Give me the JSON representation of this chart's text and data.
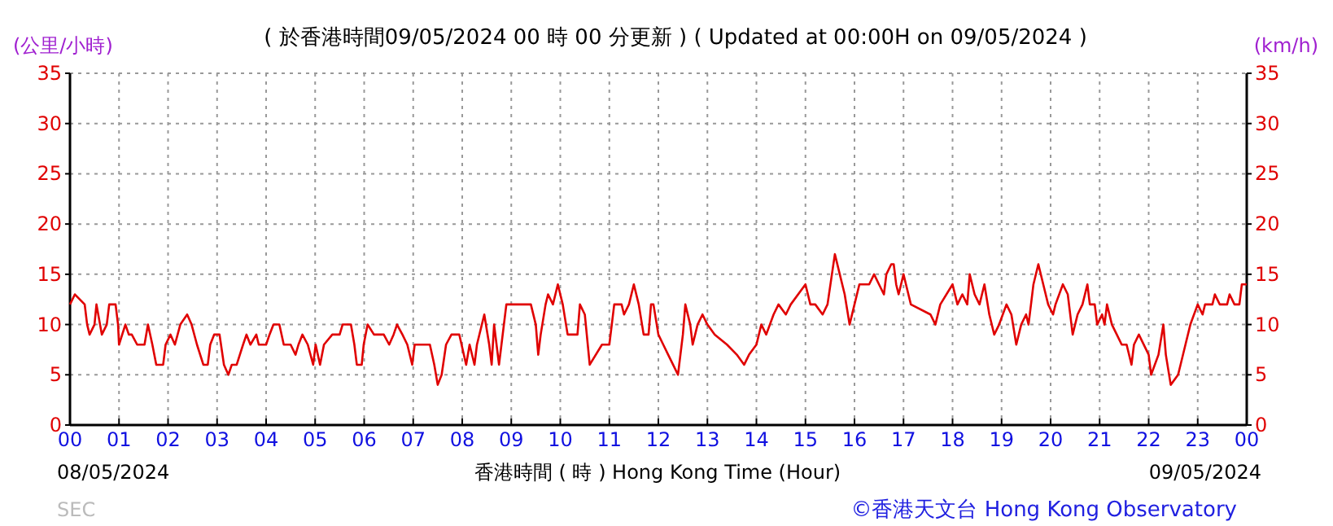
{
  "chart_data": {
    "type": "line",
    "title": "( 於香港時間09/05/2024 00 時 00 分更新 ) ( Updated at 00:00H on 09/05/2024 )",
    "ylabel": "(公里/小時)",
    "y2label": "(km/h)",
    "xlabel": "香港時間 ( 時 ) Hong Kong Time (Hour)",
    "annotations": [
      "08/05/2024",
      "09/05/2024",
      "SEC",
      "©香港天文台 Hong Kong Observatory"
    ],
    "xlim": [
      0,
      24
    ],
    "xticks": [
      {
        "value": 0,
        "label": "00"
      },
      {
        "value": 1,
        "label": "01"
      },
      {
        "value": 2,
        "label": "02"
      },
      {
        "value": 3,
        "label": "03"
      },
      {
        "value": 4,
        "label": "04"
      },
      {
        "value": 5,
        "label": "05"
      },
      {
        "value": 6,
        "label": "06"
      },
      {
        "value": 7,
        "label": "07"
      },
      {
        "value": 8,
        "label": "08"
      },
      {
        "value": 9,
        "label": "09"
      },
      {
        "value": 10,
        "label": "10"
      },
      {
        "value": 11,
        "label": "11"
      },
      {
        "value": 12,
        "label": "12"
      },
      {
        "value": 13,
        "label": "13"
      },
      {
        "value": 14,
        "label": "14"
      },
      {
        "value": 15,
        "label": "15"
      },
      {
        "value": 16,
        "label": "16"
      },
      {
        "value": 17,
        "label": "17"
      },
      {
        "value": 18,
        "label": "18"
      },
      {
        "value": 19,
        "label": "19"
      },
      {
        "value": 20,
        "label": "20"
      },
      {
        "value": 21,
        "label": "21"
      },
      {
        "value": 22,
        "label": "22"
      },
      {
        "value": 23,
        "label": "23"
      },
      {
        "value": 24,
        "label": "00"
      }
    ],
    "ylim": [
      0,
      35
    ],
    "yticks": [
      0,
      5,
      10,
      15,
      20,
      25,
      30,
      35
    ],
    "y2lim": [
      0,
      35
    ],
    "y2ticks": [
      0,
      5,
      10,
      15,
      20,
      25,
      30,
      35
    ],
    "grid": true,
    "marker": "none",
    "series": [
      {
        "color": "#e00000",
        "x": [
          0,
          0.1,
          0.3,
          0.35,
          0.4,
          0.5,
          0.54,
          0.65,
          0.75,
          0.8,
          0.93,
          0.98,
          1.0,
          1.13,
          1.2,
          1.26,
          1.37,
          1.52,
          1.59,
          1.68,
          1.76,
          1.9,
          1.95,
          2.05,
          2.14,
          2.25,
          2.39,
          2.48,
          2.59,
          2.72,
          2.81,
          2.86,
          2.94,
          3.05,
          3.14,
          3.23,
          3.3,
          3.4,
          3.53,
          3.6,
          3.68,
          3.8,
          3.85,
          4.0,
          4.07,
          4.15,
          4.27,
          4.36,
          4.5,
          4.6,
          4.66,
          4.74,
          4.85,
          4.96,
          5.01,
          5.1,
          5.18,
          5.35,
          5.5,
          5.56,
          5.73,
          5.8,
          5.85,
          5.95,
          5.99,
          6.07,
          6.2,
          6.4,
          6.51,
          6.6,
          6.67,
          6.78,
          6.88,
          6.98,
          7.03,
          7.34,
          7.43,
          7.5,
          7.58,
          7.67,
          7.78,
          7.94,
          8.08,
          8.15,
          8.25,
          8.3,
          8.4,
          8.45,
          8.55,
          8.6,
          8.65,
          8.75,
          8.8,
          8.9,
          9.4,
          9.5,
          9.55,
          9.6,
          9.7,
          9.75,
          9.85,
          9.95,
          10.05,
          10.15,
          10.35,
          10.4,
          10.5,
          10.6,
          10.85,
          11.0,
          11.05,
          11.1,
          11.25,
          11.3,
          11.4,
          11.5,
          11.6,
          11.7,
          11.8,
          11.85,
          11.9,
          12.0,
          12.1,
          12.2,
          12.3,
          12.4,
          12.5,
          12.55,
          12.65,
          12.7,
          12.8,
          12.9,
          13.0,
          13.15,
          13.4,
          13.6,
          13.75,
          13.85,
          14.0,
          14.1,
          14.2,
          14.35,
          14.45,
          14.6,
          14.7,
          15.0,
          15.1,
          15.2,
          15.35,
          15.45,
          15.6,
          15.7,
          15.8,
          15.9,
          16.0,
          16.1,
          16.3,
          16.4,
          16.5,
          16.6,
          16.65,
          16.75,
          16.8,
          16.85,
          16.9,
          16.95,
          17.0,
          17.05,
          17.15,
          17.55,
          17.65,
          17.75,
          18.0,
          18.1,
          18.2,
          18.3,
          18.35,
          18.45,
          18.55,
          18.65,
          18.75,
          18.85,
          18.95,
          19.1,
          19.2,
          19.3,
          19.4,
          19.5,
          19.55,
          19.65,
          19.75,
          19.85,
          19.95,
          20.05,
          20.1,
          20.25,
          20.35,
          20.45,
          20.55,
          20.65,
          20.75,
          20.8,
          20.9,
          20.95,
          21.05,
          21.1,
          21.15,
          21.25,
          21.35,
          21.45,
          21.55,
          21.65,
          21.7,
          21.8,
          22.0,
          22.05,
          22.2,
          22.3,
          22.35,
          22.45,
          22.6,
          22.65,
          22.75,
          22.85,
          23.0,
          23.1,
          23.15,
          23.3,
          23.35,
          23.45,
          23.6,
          23.65,
          23.75,
          23.85,
          23.9,
          24.0
        ],
        "values": [
          12,
          13,
          12,
          10,
          9,
          10,
          12,
          9,
          10,
          12,
          12,
          10,
          8,
          10,
          9,
          9,
          8,
          8,
          10,
          8,
          6,
          6,
          8,
          9,
          8,
          10,
          11,
          10,
          8,
          6,
          6,
          8,
          9,
          9,
          6,
          5,
          6,
          6,
          8,
          9,
          8,
          9,
          8,
          8,
          9,
          10,
          10,
          8,
          8,
          7,
          8,
          9,
          8,
          6,
          8,
          6,
          8,
          9,
          9,
          10,
          10,
          8,
          6,
          6,
          8,
          10,
          9,
          9,
          8,
          9,
          10,
          9,
          8,
          6,
          8,
          8,
          6,
          4,
          5,
          8,
          9,
          9,
          6,
          8,
          6,
          8,
          10,
          11,
          8,
          6,
          10,
          6,
          8,
          12,
          12,
          10,
          7,
          9,
          12,
          13,
          12,
          14,
          12,
          9,
          9,
          12,
          11,
          6,
          8,
          8,
          10,
          12,
          12,
          11,
          12,
          14,
          12,
          9,
          9,
          12,
          12,
          9,
          8,
          7,
          6,
          5,
          9,
          12,
          10,
          8,
          10,
          11,
          10,
          9,
          8,
          7,
          6,
          7,
          8,
          10,
          9,
          11,
          12,
          11,
          12,
          14,
          12,
          12,
          11,
          12,
          17,
          15,
          13,
          10,
          12,
          14,
          14,
          15,
          14,
          13,
          15,
          16,
          16,
          14,
          13,
          14,
          15,
          14,
          12,
          11,
          10,
          12,
          14,
          12,
          13,
          12,
          15,
          13,
          12,
          14,
          11,
          9,
          10,
          12,
          11,
          8,
          10,
          11,
          10,
          14,
          16,
          14,
          12,
          11,
          12,
          14,
          13,
          9,
          11,
          12,
          14,
          12,
          12,
          10,
          11,
          10,
          12,
          10,
          9,
          8,
          8,
          6,
          8,
          9,
          7,
          5,
          7,
          10,
          7,
          4,
          5,
          6,
          8,
          10,
          12,
          11,
          12,
          12,
          13,
          12,
          12,
          13,
          12,
          12,
          14,
          14
        ]
      }
    ]
  }
}
